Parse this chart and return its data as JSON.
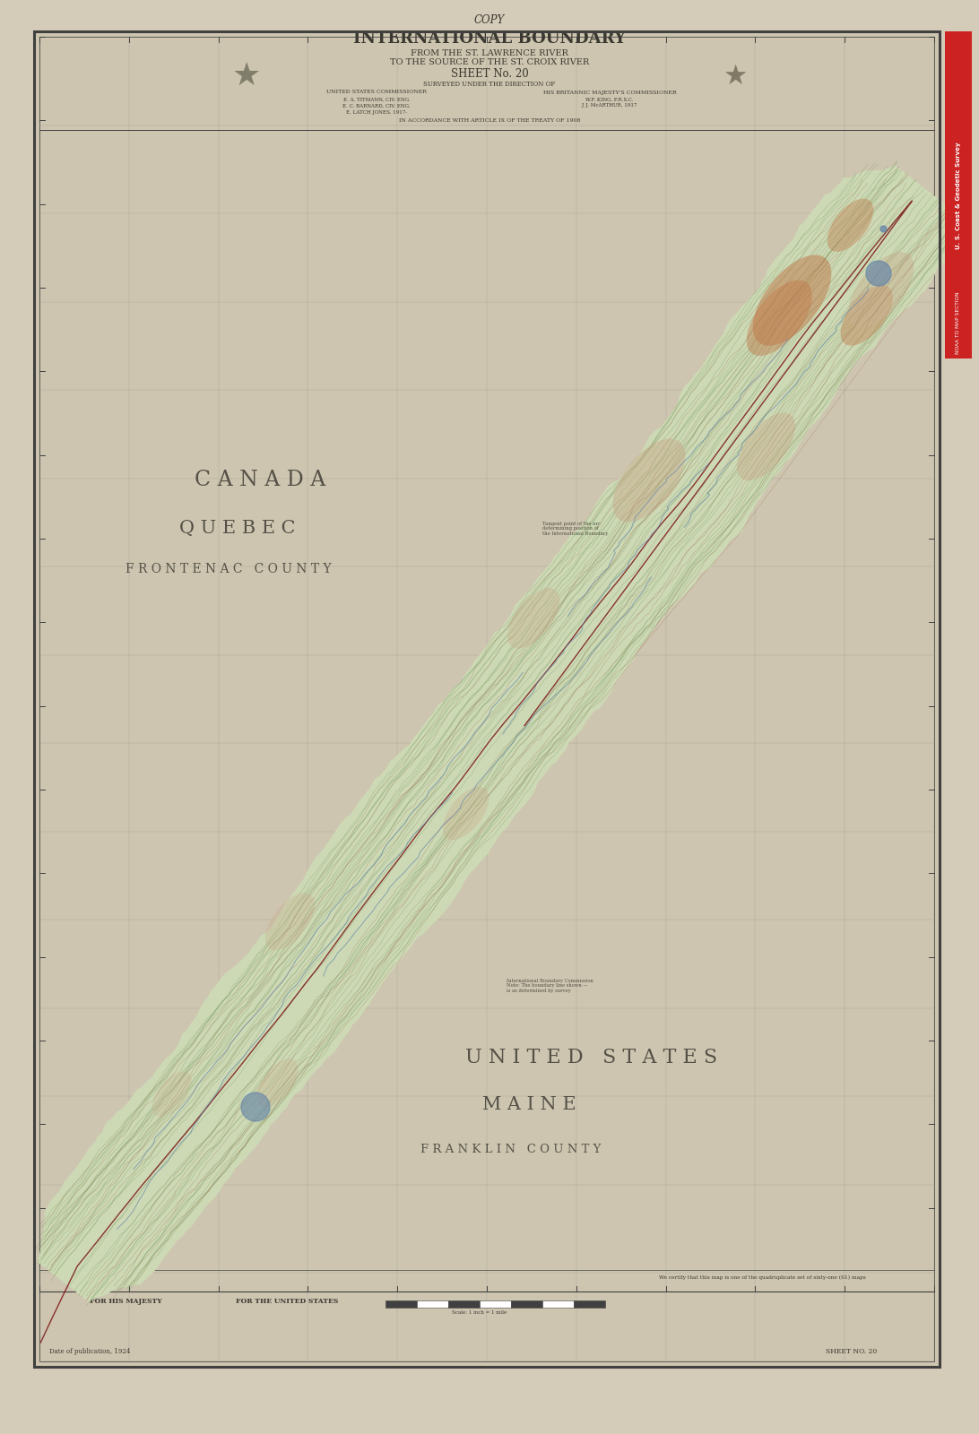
{
  "bg_color": "#d4cbb8",
  "inner_bg": "#cec5b0",
  "title_text": "INTERNATIONAL BOUNDARY",
  "subtitle1": "FROM THE ST. LAWRENCE RIVER",
  "subtitle2": "TO THE SOURCE OF THE ST. CROIX RIVER",
  "sheet_text": "SHEET No. 20",
  "copy_text": "COPY",
  "canada_text": "C A N A D A",
  "quebec_text": "Q U E B E C",
  "frontenac_text": "F R O N T E N A C   C O U N T Y",
  "us_text": "U N I T E D   S T A T E S",
  "maine_text": "M A I N E",
  "franklin_text": "F R A N K L I N   C O U N T Y",
  "sidebar_color": "#cc2222",
  "sidebar_text": "U. S. Coast & Geodetic Survey",
  "sidebar_text2": "NOAA TO MAP SECTION",
  "topo_green_light": "#cdd9b5",
  "topo_tan": "#c8b090",
  "topo_red": "#c07848",
  "topo_blue": "#6888a8",
  "border_color": "#404040",
  "grid_color": "#999990",
  "text_color": "#3a3830"
}
